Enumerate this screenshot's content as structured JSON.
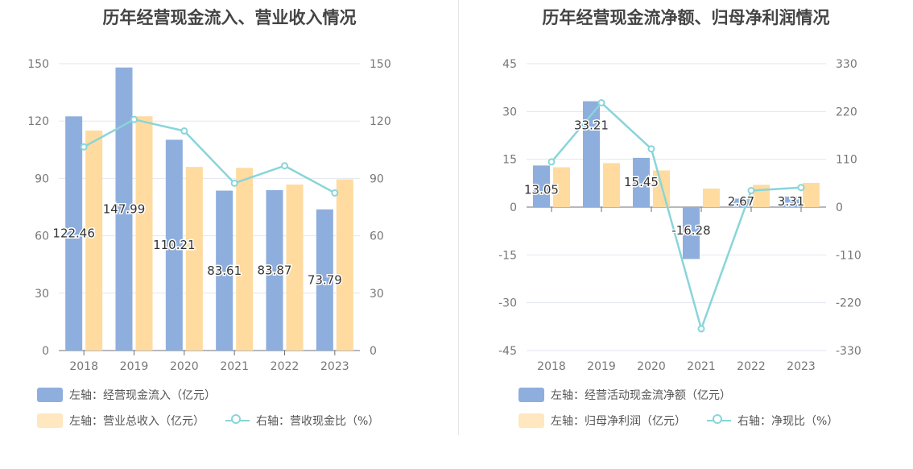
{
  "colors": {
    "bar_primary": "#8eaedd",
    "bar_secondary": "#ffdba0",
    "line": "#89d5d9",
    "grid": "#e3e6f0",
    "axis_text": "#777777"
  },
  "chart_data": [
    {
      "type": "bar",
      "title": "历年经营现金流入、营业收入情况",
      "categories": [
        "2018",
        "2019",
        "2020",
        "2021",
        "2022",
        "2023"
      ],
      "left_axis": {
        "ticks": [
          "0",
          "30",
          "60",
          "90",
          "120",
          "150"
        ],
        "ylim": [
          0,
          150
        ]
      },
      "right_axis": {
        "ticks": [
          "0",
          "30",
          "60",
          "90",
          "120",
          "150"
        ],
        "ylim": [
          0,
          150
        ]
      },
      "series": [
        {
          "name": "左轴：经营现金流入（亿元）",
          "type": "bar",
          "axis": "left",
          "values": [
            122.46,
            147.99,
            110.21,
            83.61,
            83.87,
            73.79
          ],
          "labels": [
            "122.46",
            "147.99",
            "110.21",
            "83.61",
            "83.87",
            "73.79"
          ]
        },
        {
          "name": "左轴：营业总收入（亿元）",
          "type": "bar",
          "axis": "left",
          "values": [
            115,
            122.5,
            96,
            95.5,
            86.8,
            89.5
          ]
        },
        {
          "name": "右轴：营收现金比（%）",
          "type": "line",
          "axis": "right",
          "values": [
            106.5,
            120.8,
            114.8,
            87.5,
            96.6,
            82.4
          ]
        }
      ]
    },
    {
      "type": "bar",
      "title": "历年经营现金流净额、归母净利润情况",
      "categories": [
        "2018",
        "2019",
        "2020",
        "2021",
        "2022",
        "2023"
      ],
      "left_axis": {
        "ticks": [
          "-45",
          "-30",
          "-15",
          "0",
          "15",
          "30",
          "45"
        ],
        "ylim": [
          -45,
          45
        ]
      },
      "right_axis": {
        "ticks": [
          "-330",
          "-220",
          "-110",
          "0",
          "110",
          "220",
          "330"
        ],
        "ylim": [
          -330,
          330
        ]
      },
      "series": [
        {
          "name": "左轴：经营活动现金流净额（亿元）",
          "type": "bar",
          "axis": "left",
          "values": [
            13.05,
            33.21,
            15.45,
            -16.28,
            2.67,
            3.31
          ],
          "labels": [
            "13.05",
            "33.21",
            "15.45",
            "-16.28",
            "2.67",
            "3.31"
          ]
        },
        {
          "name": "左轴：归母净利润（亿元）",
          "type": "bar",
          "axis": "left",
          "values": [
            12.5,
            13.8,
            11.5,
            5.8,
            7.0,
            7.6
          ]
        },
        {
          "name": "右轴：净现比（%）",
          "type": "line",
          "axis": "right",
          "values": [
            104,
            240,
            134,
            -280,
            38,
            45
          ]
        }
      ]
    }
  ]
}
